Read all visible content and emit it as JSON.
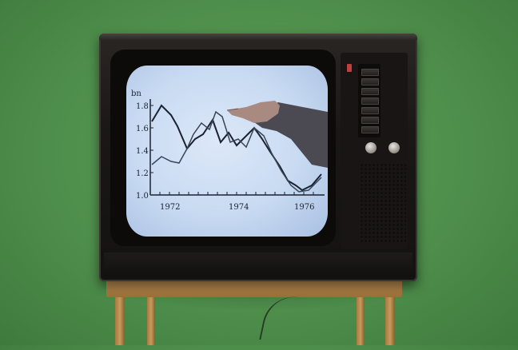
{
  "screen_chart": {
    "unit_label": "bn",
    "y_ticks": [
      "1.8",
      "1.6",
      "1.4",
      "1.2",
      "1.0"
    ],
    "x_ticks": [
      "1972",
      "1974",
      "1976"
    ]
  }
}
